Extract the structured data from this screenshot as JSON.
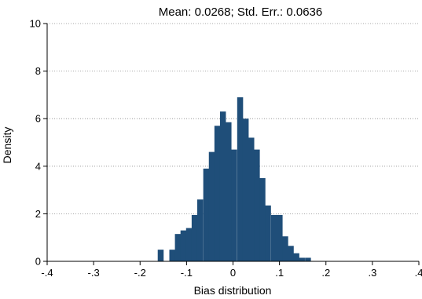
{
  "chart_data": {
    "type": "bar",
    "subtype": "histogram",
    "title": "Mean: 0.0268;  Std. Err.: 0.0636",
    "xlabel": "Bias distribution",
    "ylabel": "Density",
    "xlim": [
      -0.4,
      0.4
    ],
    "ylim": [
      0,
      10
    ],
    "xticks": [
      -0.4,
      -0.3,
      -0.2,
      -0.1,
      0,
      0.1,
      0.2,
      0.3,
      0.4
    ],
    "xtick_labels": [
      "-.4",
      "-.3",
      "-.2",
      "-.1",
      "0",
      ".1",
      ".2",
      ".3",
      ".4"
    ],
    "yticks": [
      0,
      2,
      4,
      6,
      8,
      10
    ],
    "ytick_labels": [
      "0",
      "2",
      "4",
      "6",
      "8",
      "10"
    ],
    "grid": "horizontal dotted",
    "bar_color": "#1f4e79",
    "bin_width": 0.0122,
    "bins": [
      {
        "start": -0.162,
        "value": 0.49
      },
      {
        "start": -0.15,
        "value": 0.0
      },
      {
        "start": -0.137,
        "value": 0.49
      },
      {
        "start": -0.125,
        "value": 1.15
      },
      {
        "start": -0.113,
        "value": 1.3
      },
      {
        "start": -0.101,
        "value": 1.4
      },
      {
        "start": -0.089,
        "value": 1.95
      },
      {
        "start": -0.077,
        "value": 2.6
      },
      {
        "start": -0.064,
        "value": 3.9
      },
      {
        "start": -0.052,
        "value": 4.6
      },
      {
        "start": -0.04,
        "value": 5.7
      },
      {
        "start": -0.028,
        "value": 6.3
      },
      {
        "start": -0.016,
        "value": 5.85
      },
      {
        "start": -0.004,
        "value": 4.7
      },
      {
        "start": 0.009,
        "value": 6.9
      },
      {
        "start": 0.021,
        "value": 6.0
      },
      {
        "start": 0.033,
        "value": 5.2
      },
      {
        "start": 0.045,
        "value": 4.7
      },
      {
        "start": 0.057,
        "value": 3.5
      },
      {
        "start": 0.069,
        "value": 2.35
      },
      {
        "start": 0.082,
        "value": 1.95
      },
      {
        "start": 0.094,
        "value": 1.95
      },
      {
        "start": 0.106,
        "value": 1.05
      },
      {
        "start": 0.118,
        "value": 0.65
      },
      {
        "start": 0.13,
        "value": 0.34
      },
      {
        "start": 0.142,
        "value": 0.15
      },
      {
        "start": 0.155,
        "value": 0.15
      }
    ]
  }
}
